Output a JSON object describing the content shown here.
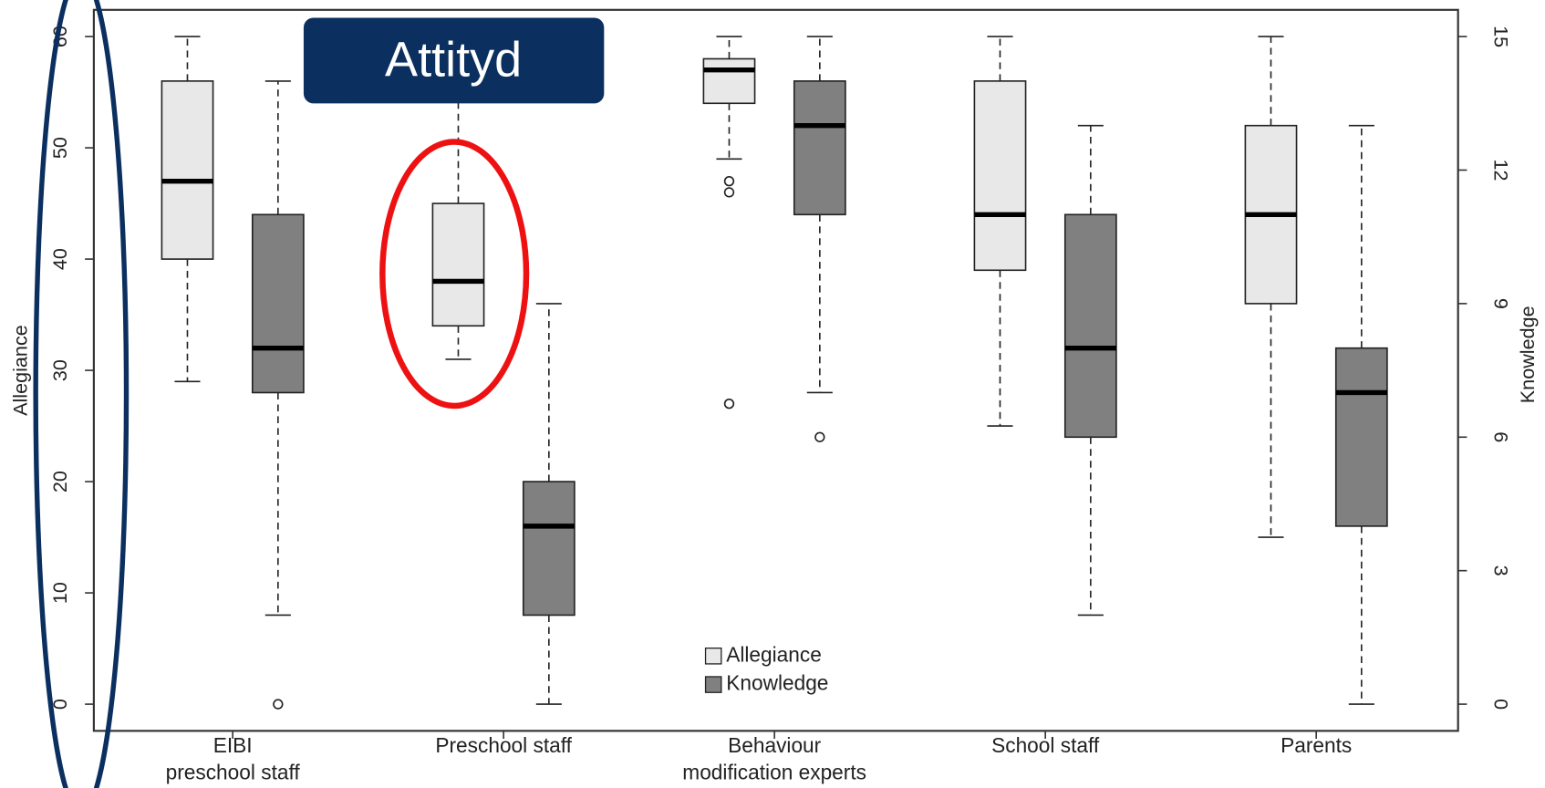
{
  "chart_data": {
    "type": "boxplot",
    "annotation": "Attityd",
    "ylabel": "Allegiance",
    "y2label": "Knowledge",
    "categories": [
      "EIBI\npreschool staff",
      "Preschool staff",
      "Behaviour\nmodification experts",
      "School staff",
      "Parents"
    ],
    "series": [
      {
        "name": "Allegiance",
        "color": "#e8e8e8",
        "axis": "y",
        "whislo": [
          29,
          31,
          49,
          25,
          15
        ],
        "q1": [
          40,
          34,
          54,
          39,
          36
        ],
        "med": [
          47,
          38,
          57,
          44,
          44
        ],
        "q3": [
          56,
          45,
          58,
          56,
          52
        ],
        "whishi": [
          60,
          60,
          60,
          60,
          60
        ],
        "fliers": [
          [],
          [],
          [
            46,
            47,
            27
          ],
          [],
          []
        ]
      },
      {
        "name": "Knowledge",
        "color": "#808080",
        "axis": "y2",
        "whislo": [
          2,
          0,
          7,
          2,
          0
        ],
        "q1": [
          7,
          2,
          11,
          6,
          4
        ],
        "med": [
          8,
          4,
          13,
          8,
          7
        ],
        "q3": [
          11,
          5,
          14,
          11,
          8
        ],
        "whishi": [
          14,
          9,
          15,
          13,
          13
        ],
        "fliers": [
          [
            0
          ],
          [],
          [
            6
          ],
          [],
          []
        ]
      }
    ],
    "ylim": [
      -2.4,
      62.4
    ],
    "yticks": [
      0,
      10,
      20,
      30,
      40,
      50,
      60
    ],
    "y2lim": [
      -0.6,
      15.6
    ],
    "y2ticks": [
      0,
      3,
      6,
      9,
      12,
      15
    ]
  }
}
